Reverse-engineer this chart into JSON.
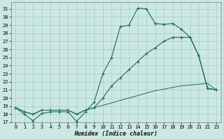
{
  "xlabel": "Humidex (Indice chaleur)",
  "bg_color": "#cce8e4",
  "grid_color": "#aacfcb",
  "line_color": "#1a6b5a",
  "xlim": [
    -0.5,
    23.5
  ],
  "ylim": [
    17,
    31.8
  ],
  "xticks": [
    0,
    1,
    2,
    3,
    4,
    5,
    6,
    7,
    8,
    9,
    10,
    11,
    12,
    13,
    14,
    15,
    16,
    17,
    18,
    19,
    20,
    21,
    22,
    23
  ],
  "yticks": [
    17,
    18,
    19,
    20,
    21,
    22,
    23,
    24,
    25,
    26,
    27,
    28,
    29,
    30,
    31
  ],
  "series1_x": [
    0,
    1,
    2,
    3,
    4,
    5,
    6,
    7,
    8,
    9,
    10,
    11,
    12,
    13,
    14,
    15,
    16,
    17,
    18,
    19,
    20,
    21,
    22,
    23
  ],
  "series1_y": [
    18.8,
    18.0,
    17.2,
    18.1,
    18.3,
    18.3,
    18.3,
    17.1,
    18.3,
    19.5,
    23.0,
    25.0,
    28.8,
    29.0,
    31.1,
    31.0,
    29.2,
    29.1,
    29.2,
    28.5,
    27.5,
    25.2,
    21.2,
    21.0
  ],
  "series2_x": [
    0,
    1,
    2,
    3,
    4,
    5,
    6,
    7,
    8,
    9,
    10,
    11,
    12,
    13,
    14,
    15,
    16,
    17,
    18,
    19,
    20,
    21,
    22,
    23
  ],
  "series2_y": [
    18.8,
    18.3,
    18.0,
    18.5,
    18.5,
    18.5,
    18.5,
    18.0,
    18.5,
    18.8,
    20.0,
    21.5,
    22.5,
    23.5,
    24.5,
    25.5,
    26.2,
    27.0,
    27.5,
    27.5,
    27.5,
    25.2,
    21.2,
    21.0
  ],
  "series3_x": [
    0,
    1,
    2,
    3,
    4,
    5,
    6,
    7,
    8,
    9,
    10,
    11,
    12,
    13,
    14,
    15,
    16,
    17,
    18,
    19,
    20,
    21,
    22,
    23
  ],
  "series3_y": [
    18.8,
    18.3,
    18.0,
    18.5,
    18.5,
    18.5,
    18.5,
    18.0,
    18.5,
    18.8,
    19.1,
    19.4,
    19.7,
    20.0,
    20.3,
    20.6,
    20.9,
    21.1,
    21.3,
    21.5,
    21.6,
    21.7,
    21.8,
    21.0
  ]
}
